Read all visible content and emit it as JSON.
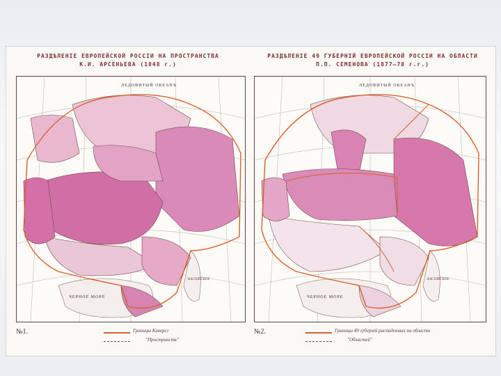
{
  "colors": {
    "region_pink": "#d87ab0",
    "region_light": "#e9b8cf",
    "border_orange": "#d9602a",
    "border_dark": "#6b4a44"
  },
  "left_map": {
    "title_line1": "РАЗДѢЛЕНІЕ ЕВРОПЕЙСКОЙ РОССІИ НА ПРОСТРАНСТВА",
    "title_line2": "К.И. АРСЕНЬЕВА (1848 г.)",
    "number": "№1.",
    "legend_1": "Границы Каверсг",
    "legend_2": "\"Пространств\"",
    "labels": {
      "arctic": "ЛЕДОВИТЫЙ ОКЕАНЪ",
      "sea": "ЧЕРНОЕ МОРЕ",
      "caspian": "КАСПІЙСКОЕ"
    }
  },
  "right_map": {
    "title_line1": "РАЗДѢЛЕНІЕ 49 ГУБЕРНІЙ ЕВРОПЕЙСКОЙ РОССІИ НА ОБЛАСТИ",
    "title_line2": "П.П. СЕМЕНОВА (1877–78 г.г.)",
    "number": "№2.",
    "legend_1": "Границы 49 губерній распаденных на области",
    "legend_2": "\"Областей\"",
    "labels": {
      "arctic": "ЛЕДОВИТЫЙ ОКЕАНЪ",
      "sea": "ЧЕРНОЕ МОРЕ",
      "caspian": "КАСПІЙСКОЕ"
    }
  }
}
